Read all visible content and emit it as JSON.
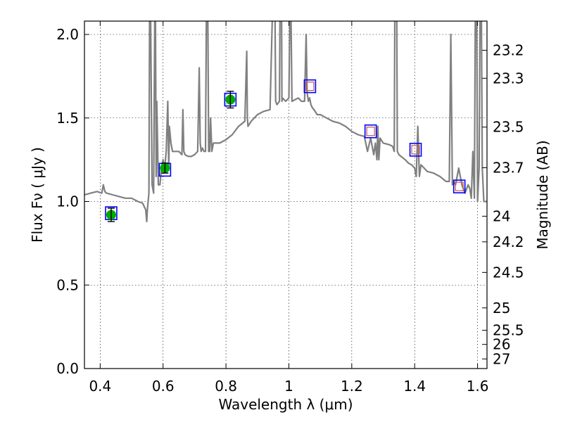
{
  "chart_data": {
    "type": "line",
    "xlabel": "Wavelength  λ (μm)",
    "ylabel": "Flux  Fν  ( μJy )",
    "y2label": "Magnitude (AB)",
    "xlim": [
      0.35,
      1.63
    ],
    "ylim": [
      0.0,
      2.08
    ],
    "grid": true,
    "x_ticks": [
      {
        "value": 0.4,
        "label": "0.4"
      },
      {
        "value": 0.6,
        "label": "0.6"
      },
      {
        "value": 0.8,
        "label": "0.8"
      },
      {
        "value": 1.0,
        "label": "1"
      },
      {
        "value": 1.2,
        "label": "1.2"
      },
      {
        "value": 1.4,
        "label": "1.4"
      },
      {
        "value": 1.6,
        "label": "1.6"
      }
    ],
    "y_ticks": [
      {
        "value": 0.0,
        "label": "0.0"
      },
      {
        "value": 0.5,
        "label": "0.5"
      },
      {
        "value": 1.0,
        "label": "1.0"
      },
      {
        "value": 1.5,
        "label": "1.5"
      },
      {
        "value": 2.0,
        "label": "2.0"
      }
    ],
    "mag_ticks": [
      {
        "value": 23.2,
        "label": "23.2"
      },
      {
        "value": 23.3,
        "label": "23.3"
      },
      {
        "value": 23.5,
        "label": "23.5"
      },
      {
        "value": 23.7,
        "label": "23.7"
      },
      {
        "value": 24.0,
        "label": "24"
      },
      {
        "value": 24.2,
        "label": "24.2"
      },
      {
        "value": 24.5,
        "label": "24.5"
      },
      {
        "value": 25.0,
        "label": "25"
      },
      {
        "value": 25.5,
        "label": "25.5"
      },
      {
        "value": 26.0,
        "label": "26"
      },
      {
        "value": 27.0,
        "label": "27"
      }
    ],
    "series": [
      {
        "kind": "model_spectrum",
        "color": "#808080",
        "x": [
          0.35,
          0.37,
          0.39,
          0.405,
          0.41,
          0.415,
          0.42,
          0.44,
          0.46,
          0.48,
          0.5,
          0.52,
          0.535,
          0.54,
          0.545,
          0.548,
          0.55,
          0.555,
          0.558,
          0.565,
          0.57,
          0.575,
          0.578,
          0.58,
          0.585,
          0.59,
          0.595,
          0.6,
          0.605,
          0.61,
          0.615,
          0.618,
          0.62,
          0.625,
          0.63,
          0.64,
          0.65,
          0.66,
          0.663,
          0.666,
          0.67,
          0.68,
          0.69,
          0.7,
          0.71,
          0.715,
          0.718,
          0.721,
          0.725,
          0.73,
          0.735,
          0.74,
          0.745,
          0.748,
          0.751,
          0.755,
          0.76,
          0.78,
          0.8,
          0.82,
          0.84,
          0.86,
          0.866,
          0.868,
          0.87,
          0.88,
          0.9,
          0.92,
          0.94,
          0.954,
          0.958,
          0.962,
          0.97,
          0.975,
          0.978,
          0.98,
          0.99,
          1.0,
          1.005,
          1.01,
          1.02,
          1.03,
          1.04,
          1.05,
          1.055,
          1.058,
          1.062,
          1.066,
          1.07,
          1.075,
          1.08,
          1.09,
          1.1,
          1.12,
          1.14,
          1.16,
          1.18,
          1.2,
          1.22,
          1.24,
          1.25,
          1.26,
          1.27,
          1.275,
          1.28,
          1.283,
          1.286,
          1.29,
          1.3,
          1.32,
          1.33,
          1.335,
          1.34,
          1.345,
          1.35,
          1.37,
          1.38,
          1.39,
          1.4,
          1.405,
          1.41,
          1.415,
          1.42,
          1.44,
          1.46,
          1.48,
          1.5,
          1.51,
          1.515,
          1.52,
          1.525,
          1.53,
          1.54,
          1.55,
          1.56,
          1.57,
          1.575,
          1.58,
          1.585,
          1.59,
          1.595,
          1.6,
          1.605,
          1.61,
          1.615,
          1.62,
          1.63
        ],
        "y": [
          1.04,
          1.05,
          1.06,
          1.05,
          1.1,
          1.06,
          1.05,
          1.04,
          1.03,
          1.02,
          1.02,
          1.0,
          0.99,
          0.97,
          0.95,
          0.88,
          0.95,
          1.05,
          2.6,
          1.1,
          1.05,
          2.5,
          1.15,
          1.6,
          1.1,
          1.1,
          1.2,
          1.25,
          1.2,
          1.3,
          1.6,
          1.2,
          1.45,
          1.35,
          1.3,
          1.3,
          1.3,
          1.28,
          1.55,
          1.3,
          1.28,
          1.27,
          1.27,
          1.28,
          1.3,
          1.8,
          1.35,
          1.3,
          1.32,
          1.3,
          1.3,
          2.8,
          1.3,
          1.3,
          1.5,
          1.3,
          1.35,
          1.35,
          1.37,
          1.4,
          1.45,
          1.48,
          1.9,
          1.5,
          1.45,
          1.48,
          1.52,
          1.54,
          1.55,
          2.6,
          1.6,
          1.58,
          1.6,
          3.1,
          1.6,
          1.62,
          1.6,
          1.62,
          2.4,
          1.6,
          1.61,
          1.62,
          1.6,
          1.6,
          2.0,
          1.65,
          1.6,
          1.62,
          1.58,
          1.56,
          1.55,
          1.52,
          1.52,
          1.5,
          1.48,
          1.47,
          1.45,
          1.42,
          1.4,
          1.39,
          1.3,
          1.38,
          1.28,
          1.35,
          1.25,
          1.45,
          1.25,
          1.38,
          1.35,
          1.34,
          1.33,
          1.3,
          3.5,
          1.3,
          1.28,
          1.25,
          1.23,
          1.22,
          1.2,
          1.15,
          1.45,
          1.15,
          1.22,
          1.18,
          1.17,
          1.15,
          1.12,
          1.12,
          2.0,
          1.1,
          1.12,
          1.1,
          1.2,
          1.1,
          1.05,
          1.1,
          1.08,
          1.02,
          1.3,
          1.02,
          3.0,
          1.0,
          1.2,
          2.8,
          1.2,
          1.0,
          1.0
        ]
      },
      {
        "kind": "model_photometry",
        "marker": "square",
        "edgecolor": "#0000ff",
        "x": [
          0.435,
          0.606,
          0.814,
          1.067,
          1.26,
          1.403,
          1.542
        ],
        "y": [
          0.93,
          1.19,
          1.61,
          1.69,
          1.42,
          1.31,
          1.09
        ]
      },
      {
        "kind": "observed_detections",
        "marker": "circle",
        "color": "#00aa00",
        "x": [
          0.435,
          0.606,
          0.814
        ],
        "y": [
          0.92,
          1.2,
          1.61
        ],
        "yerr": [
          0.04,
          0.03,
          0.05
        ]
      },
      {
        "kind": "observed_nondetections",
        "marker": "open-square",
        "edgecolor": "#cc5555",
        "x": [
          1.067,
          1.26,
          1.403,
          1.542
        ],
        "y": [
          1.69,
          1.42,
          1.31,
          1.09
        ]
      }
    ]
  }
}
